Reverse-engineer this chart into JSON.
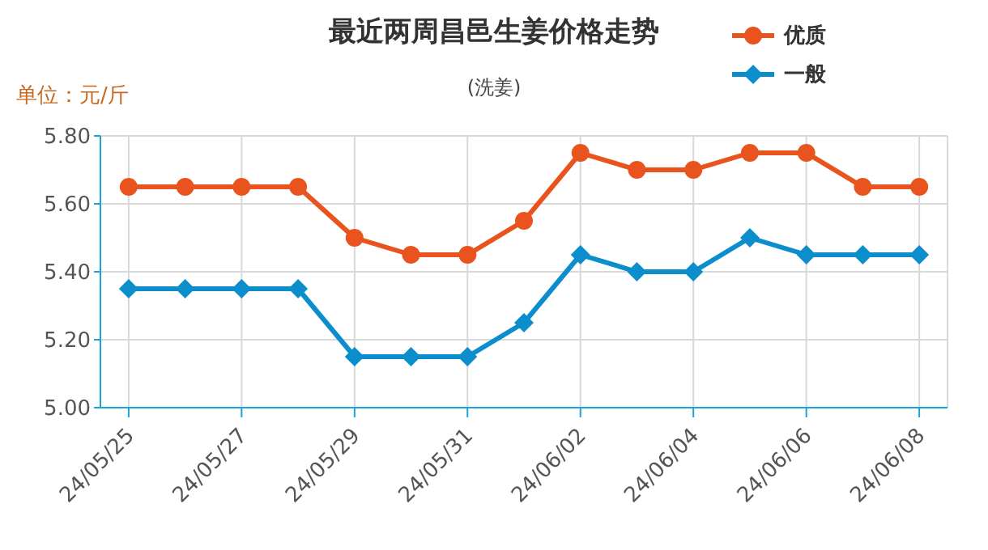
{
  "chart_data": {
    "type": "line",
    "title": "最近两周昌邑生姜价格走势",
    "subtitle": "(洗姜)",
    "ylabel": "单位：元/斤",
    "categories": [
      "24/05/25",
      null,
      "24/05/27",
      null,
      "24/05/29",
      null,
      "24/05/31",
      null,
      "24/06/02",
      null,
      "24/06/04",
      null,
      "24/06/06",
      null,
      "24/06/08"
    ],
    "series": [
      {
        "name": "优质",
        "color": "#e8531e",
        "marker": "circle",
        "values": [
          5.65,
          5.65,
          5.65,
          5.65,
          5.5,
          5.45,
          5.45,
          5.55,
          5.75,
          5.7,
          5.7,
          5.75,
          5.75,
          5.65,
          5.65
        ]
      },
      {
        "name": "一般",
        "color": "#0b8ecb",
        "marker": "diamond",
        "values": [
          5.35,
          5.35,
          5.35,
          5.35,
          5.15,
          5.15,
          5.15,
          5.25,
          5.45,
          5.4,
          5.4,
          5.5,
          5.45,
          5.45,
          5.45
        ]
      }
    ],
    "ylim": [
      5.0,
      5.8
    ],
    "yticks": [
      {
        "value": 5.0,
        "label": "5.00"
      },
      {
        "value": 5.2,
        "label": "5.20"
      },
      {
        "value": 5.4,
        "label": "5.40"
      },
      {
        "value": 5.6,
        "label": "5.60"
      },
      {
        "value": 5.8,
        "label": "5.80"
      }
    ],
    "grid": true,
    "legend": "top right",
    "line_style": "solid"
  }
}
